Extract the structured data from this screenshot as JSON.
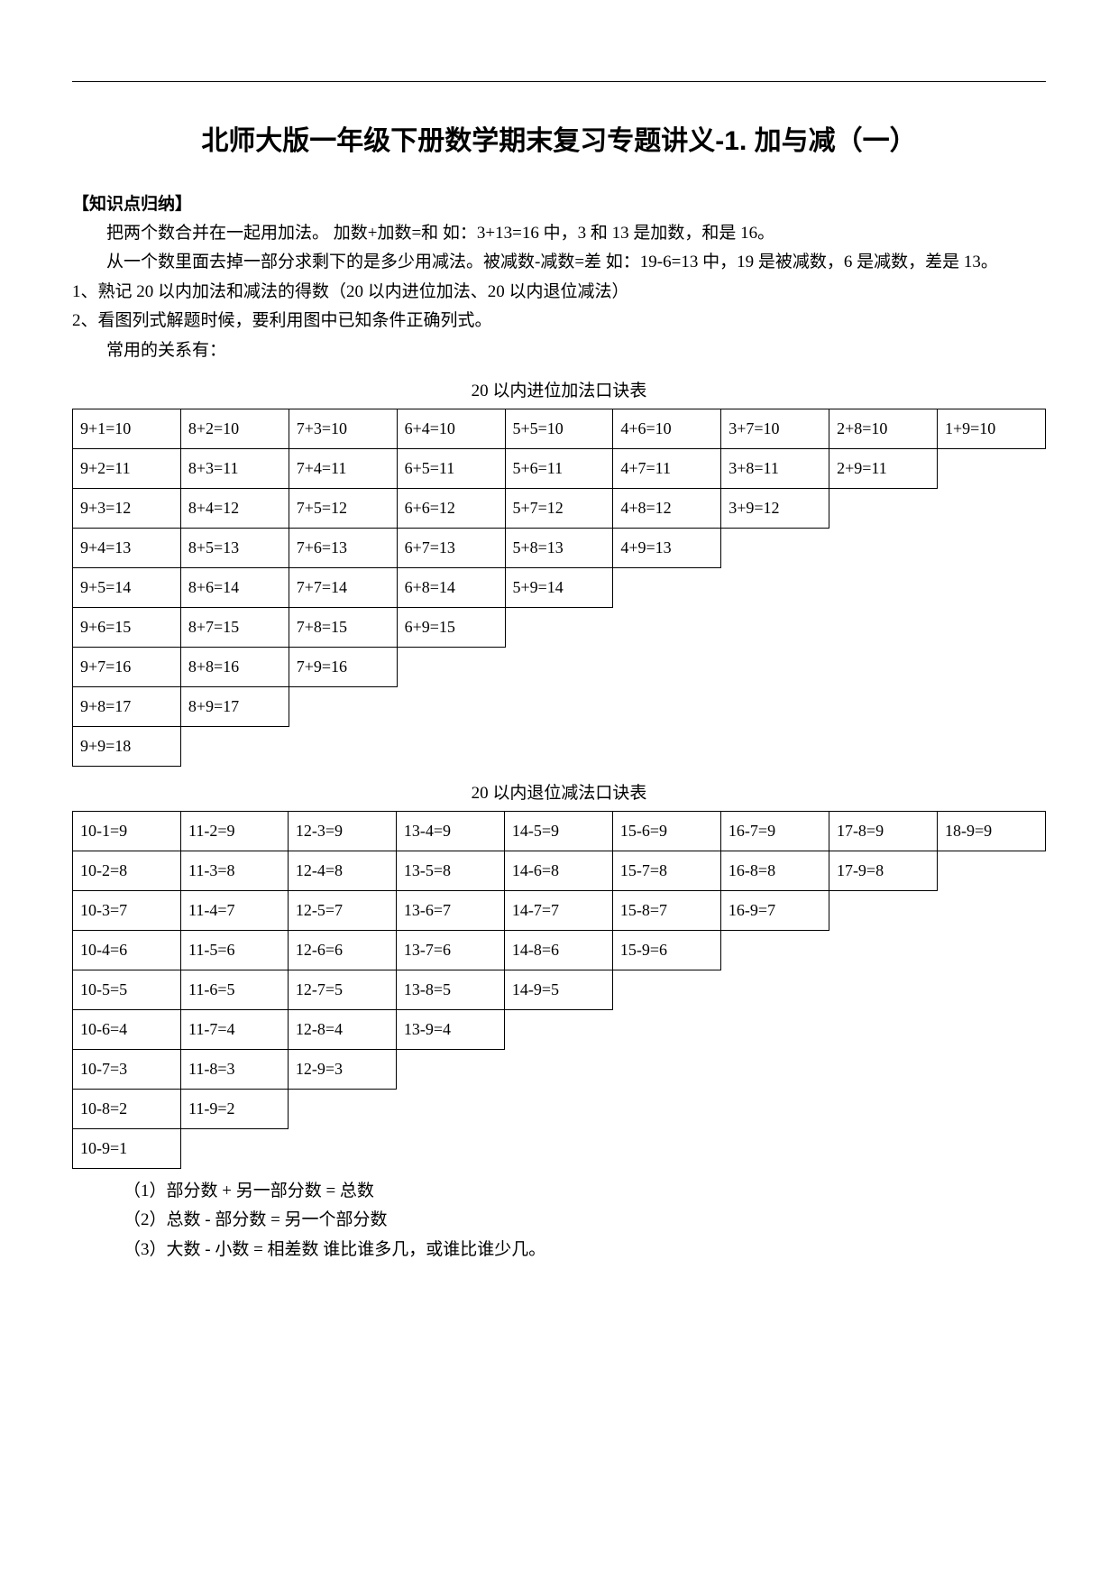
{
  "title": "北师大版一年级下册数学期末复习专题讲义-1. 加与减（一）",
  "heading_knowledge": "【知识点归纳】",
  "para1": "把两个数合并在一起用加法。 加数+加数=和 如：3+13=16 中，3 和 13 是加数，和是 16。",
  "para2": "从一个数里面去掉一部分求剩下的是多少用减法。被减数-减数=差 如：19-6=13 中，19 是被减数，6 是减数，差是 13。",
  "para3": "1、熟记 20 以内加法和减法的得数（20 以内进位加法、20 以内退位减法）",
  "para4": "2、看图列式解题时候，要利用图中已知条件正确列式。",
  "para5": "常用的关系有：",
  "table1_caption": "20 以内进位加法口诀表",
  "table1": [
    [
      "9+1=10",
      "8+2=10",
      "7+3=10",
      "6+4=10",
      "5+5=10",
      "4+6=10",
      "3+7=10",
      "2+8=10",
      "1+9=10"
    ],
    [
      "9+2=11",
      "8+3=11",
      "7+4=11",
      "6+5=11",
      "5+6=11",
      "4+7=11",
      "3+8=11",
      "2+9=11",
      ""
    ],
    [
      "9+3=12",
      "8+4=12",
      "7+5=12",
      "6+6=12",
      "5+7=12",
      "4+8=12",
      "3+9=12",
      "",
      ""
    ],
    [
      "9+4=13",
      "8+5=13",
      "7+6=13",
      "6+7=13",
      "5+8=13",
      "4+9=13",
      "",
      "",
      ""
    ],
    [
      "9+5=14",
      "8+6=14",
      "7+7=14",
      "6+8=14",
      "5+9=14",
      "",
      "",
      "",
      ""
    ],
    [
      "9+6=15",
      "8+7=15",
      "7+8=15",
      "6+9=15",
      "",
      "",
      "",
      "",
      ""
    ],
    [
      "9+7=16",
      "8+8=16",
      "7+9=16",
      "",
      "",
      "",
      "",
      "",
      ""
    ],
    [
      "9+8=17",
      "8+9=17",
      "",
      "",
      "",
      "",
      "",
      "",
      ""
    ],
    [
      "9+9=18",
      "",
      "",
      "",
      "",
      "",
      "",
      "",
      ""
    ]
  ],
  "table2_caption": "20 以内退位减法口诀表",
  "table2": [
    [
      "10-1=9",
      "11-2=9",
      "12-3=9",
      "13-4=9",
      "14-5=9",
      "15-6=9",
      "16-7=9",
      "17-8=9",
      "18-9=9"
    ],
    [
      "10-2=8",
      "11-3=8",
      "12-4=8",
      "13-5=8",
      "14-6=8",
      "15-7=8",
      "16-8=8",
      "17-9=8",
      ""
    ],
    [
      "10-3=7",
      "11-4=7",
      "12-5=7",
      "13-6=7",
      "14-7=7",
      "15-8=7",
      "16-9=7",
      "",
      ""
    ],
    [
      "10-4=6",
      "11-5=6",
      "12-6=6",
      "13-7=6",
      "14-8=6",
      "15-9=6",
      "",
      "",
      ""
    ],
    [
      "10-5=5",
      "11-6=5",
      "12-7=5",
      "13-8=5",
      "14-9=5",
      "",
      "",
      "",
      ""
    ],
    [
      "10-6=4",
      "11-7=4",
      "12-8=4",
      "13-9=4",
      "",
      "",
      "",
      "",
      ""
    ],
    [
      "10-7=3",
      "11-8=3",
      "12-9=3",
      "",
      "",
      "",
      "",
      "",
      ""
    ],
    [
      "10-8=2",
      "11-9=2",
      "",
      "",
      "",
      "",
      "",
      "",
      ""
    ],
    [
      "10-9=1",
      "",
      "",
      "",
      "",
      "",
      "",
      "",
      ""
    ]
  ],
  "formula1": "（1）部分数 + 另一部分数 = 总数",
  "formula2": "（2）总数 - 部分数 = 另一个部分数",
  "formula3": "（3）大数 - 小数 = 相差数 谁比谁多几，或谁比谁少几。"
}
